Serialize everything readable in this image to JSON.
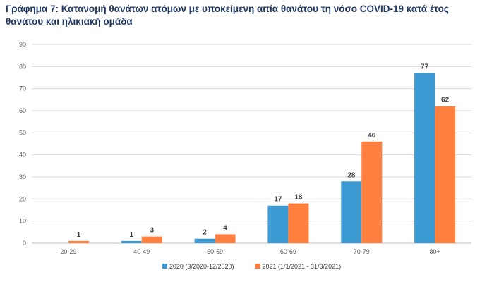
{
  "chart_data": {
    "type": "bar",
    "title": "Γράφημα 7: Κατανομή θανάτων ατόμων με υποκείμενη αιτία θανάτου τη νόσο COVID-19 κατά έτος θανάτου και ηλικιακή ομάδα",
    "categories": [
      "20-29",
      "40-49",
      "50-59",
      "60-69",
      "70-79",
      "80+"
    ],
    "series": [
      {
        "name": "2020 (3/2020-12/2020)",
        "color": "#3d9bd4",
        "values": [
          0,
          1,
          2,
          17,
          28,
          77
        ],
        "labels": [
          "",
          "1",
          "2",
          "17",
          "28",
          "77"
        ]
      },
      {
        "name": "2021 (1/1/2021 - 31/3/2021)",
        "color": "#ff7f3f",
        "values": [
          1,
          3,
          4,
          18,
          46,
          62
        ],
        "labels": [
          "1",
          "3",
          "4",
          "18",
          "46",
          "62"
        ]
      }
    ],
    "ylim": [
      0,
      90
    ],
    "yticks": [
      0,
      10,
      20,
      30,
      40,
      50,
      60,
      70,
      80,
      90
    ],
    "grid": true,
    "legend": "bottom-center",
    "xlabel": "",
    "ylabel": ""
  }
}
